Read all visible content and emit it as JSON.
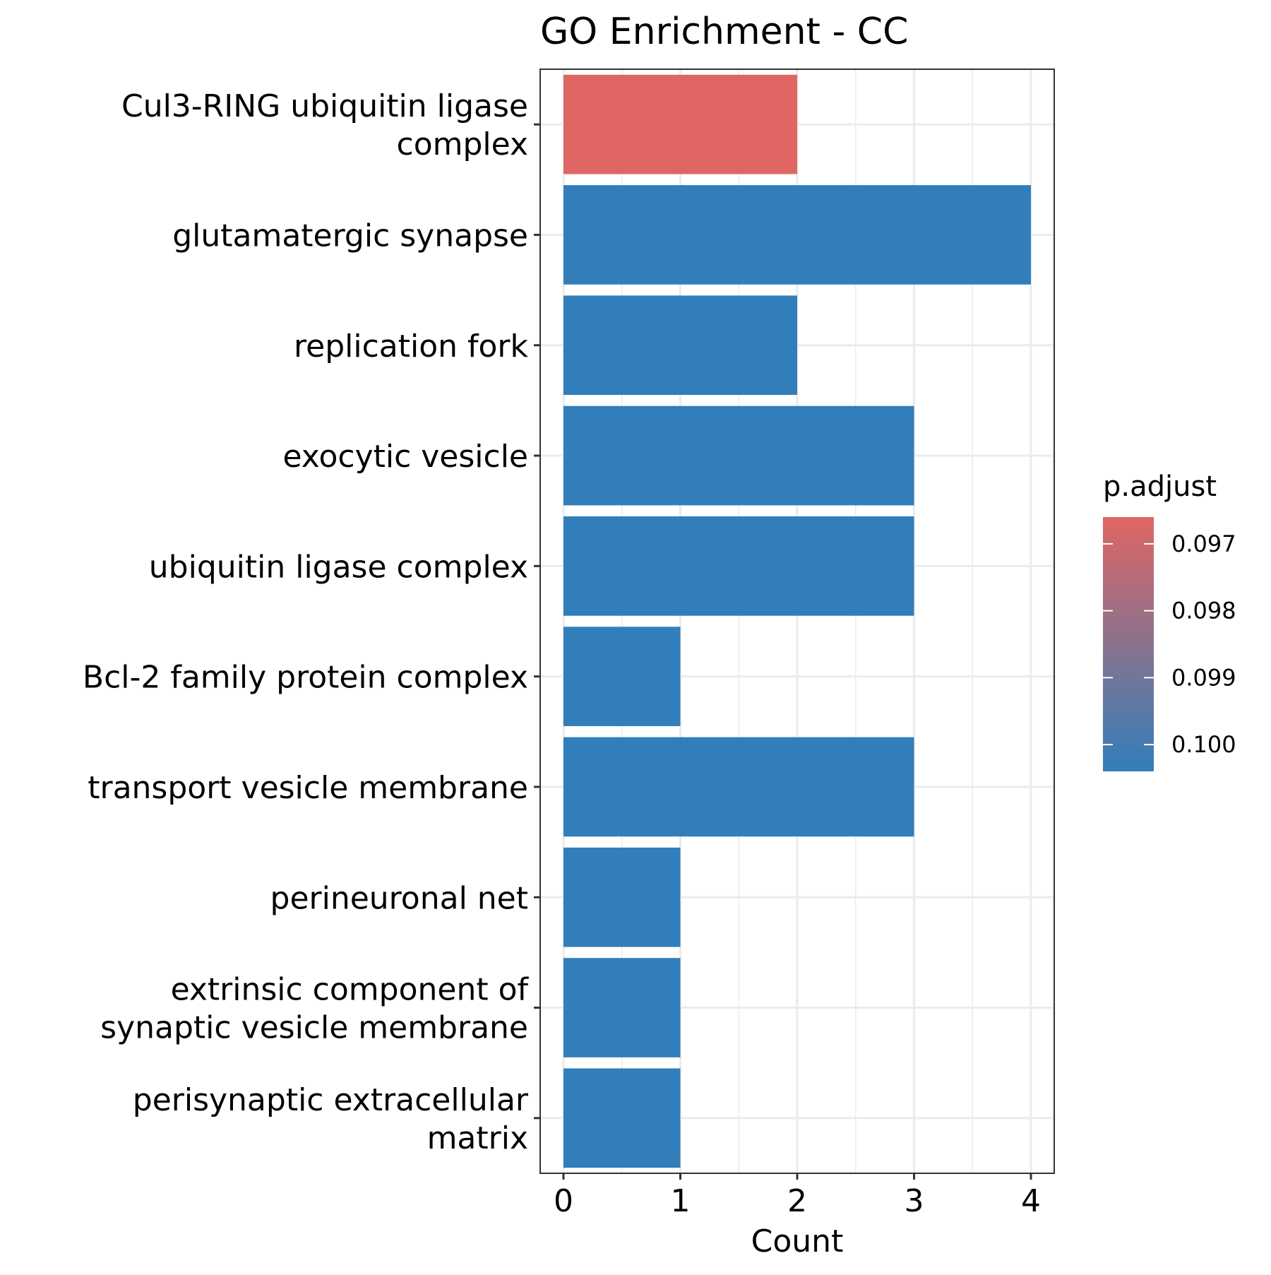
{
  "chart_data": {
    "type": "bar",
    "orientation": "horizontal",
    "title": "GO Enrichment - CC",
    "xlabel": "Count",
    "ylabel": "",
    "xlim": [
      0,
      4.2
    ],
    "xticks": [
      "0",
      "1",
      "2",
      "3",
      "4"
    ],
    "grid": true,
    "categories": [
      [
        "Cul3-RING ubiquitin ligase",
        "complex"
      ],
      [
        "glutamatergic synapse"
      ],
      [
        "replication fork"
      ],
      [
        "exocytic vesicle"
      ],
      [
        "ubiquitin ligase complex"
      ],
      [
        "Bcl-2 family protein complex"
      ],
      [
        "transport vesicle membrane"
      ],
      [
        "perineuronal net"
      ],
      [
        "extrinsic component of",
        "synaptic vesicle membrane"
      ],
      [
        "perisynaptic extracellular",
        "matrix"
      ]
    ],
    "values": [
      2,
      4,
      2,
      3,
      3,
      1,
      3,
      1,
      1,
      1
    ],
    "p_adjust": [
      0.0966,
      0.1004,
      0.1004,
      0.1004,
      0.1004,
      0.1004,
      0.1004,
      0.1004,
      0.1004,
      0.1004
    ],
    "legend": {
      "title": "p.adjust",
      "position": "right",
      "ticks": [
        "0.097",
        "0.098",
        "0.099",
        "0.100"
      ],
      "tick_values": [
        0.097,
        0.098,
        0.099,
        0.1
      ],
      "range": [
        0.0966,
        0.1004
      ],
      "low_color": "#e06663",
      "high_color": "#327eba"
    }
  }
}
